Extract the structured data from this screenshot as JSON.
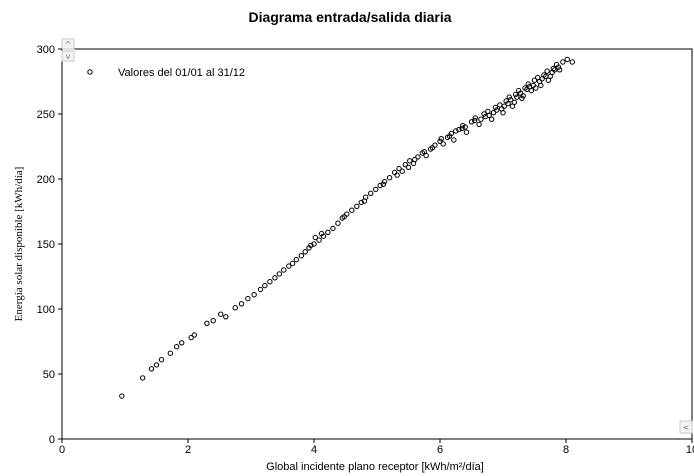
{
  "chart_data": {
    "type": "scatter",
    "title": "Diagrama entrada/salida diaria",
    "xlabel": "Global incidente plano receptor [kWh/m²/día]",
    "ylabel": "Energía solar disponible [kWh/día]",
    "xlim": [
      0,
      10
    ],
    "ylim": [
      0,
      300
    ],
    "xticks": [
      "0",
      "2",
      "4",
      "6",
      "8",
      "10"
    ],
    "yticks": [
      "0",
      "50",
      "100",
      "150",
      "200",
      "250",
      "300"
    ],
    "grid": false,
    "legend_position": "top-left",
    "series": [
      {
        "name": "Valores del 01/01 al 31/12",
        "marker": "open-circle",
        "color": "#000000",
        "points": [
          [
            0.95,
            33
          ],
          [
            1.28,
            47
          ],
          [
            1.42,
            54
          ],
          [
            1.5,
            57
          ],
          [
            1.58,
            61
          ],
          [
            1.72,
            66
          ],
          [
            1.82,
            71
          ],
          [
            1.9,
            74
          ],
          [
            2.05,
            78
          ],
          [
            2.1,
            80
          ],
          [
            2.3,
            89
          ],
          [
            2.4,
            91
          ],
          [
            2.52,
            96
          ],
          [
            2.6,
            94
          ],
          [
            2.75,
            101
          ],
          [
            2.85,
            104
          ],
          [
            2.95,
            108
          ],
          [
            3.05,
            111
          ],
          [
            3.15,
            115
          ],
          [
            3.22,
            118
          ],
          [
            3.3,
            121
          ],
          [
            3.38,
            124
          ],
          [
            3.45,
            127
          ],
          [
            3.52,
            130
          ],
          [
            3.6,
            133
          ],
          [
            3.66,
            135
          ],
          [
            3.72,
            138
          ],
          [
            3.8,
            141
          ],
          [
            3.86,
            144
          ],
          [
            3.92,
            147
          ],
          [
            4.0,
            150
          ],
          [
            4.02,
            155
          ],
          [
            4.08,
            153
          ],
          [
            4.15,
            156
          ],
          [
            4.22,
            159
          ],
          [
            4.3,
            162
          ],
          [
            4.38,
            166
          ],
          [
            4.45,
            170
          ],
          [
            4.52,
            173
          ],
          [
            4.6,
            176
          ],
          [
            4.68,
            179
          ],
          [
            4.75,
            182
          ],
          [
            4.82,
            186
          ],
          [
            4.9,
            189
          ],
          [
            4.98,
            192
          ],
          [
            5.05,
            195
          ],
          [
            5.12,
            198
          ],
          [
            5.2,
            201
          ],
          [
            5.28,
            205
          ],
          [
            5.35,
            208
          ],
          [
            5.4,
            206
          ],
          [
            5.45,
            211
          ],
          [
            5.52,
            214
          ],
          [
            5.58,
            212
          ],
          [
            5.65,
            217
          ],
          [
            5.72,
            220
          ],
          [
            5.78,
            218
          ],
          [
            5.85,
            223
          ],
          [
            5.92,
            226
          ],
          [
            6.0,
            229
          ],
          [
            6.05,
            227
          ],
          [
            6.12,
            232
          ],
          [
            6.18,
            235
          ],
          [
            6.22,
            230
          ],
          [
            6.3,
            238
          ],
          [
            6.36,
            241
          ],
          [
            6.42,
            236
          ],
          [
            6.5,
            244
          ],
          [
            6.56,
            247
          ],
          [
            6.62,
            242
          ],
          [
            6.7,
            250
          ],
          [
            6.76,
            252
          ],
          [
            6.82,
            246
          ],
          [
            6.88,
            255
          ],
          [
            6.95,
            257
          ],
          [
            7.0,
            251
          ],
          [
            7.05,
            260
          ],
          [
            7.1,
            263
          ],
          [
            7.15,
            256
          ],
          [
            7.2,
            265
          ],
          [
            7.25,
            268
          ],
          [
            7.3,
            262
          ],
          [
            7.35,
            270
          ],
          [
            7.4,
            273
          ],
          [
            7.45,
            268
          ],
          [
            7.5,
            276
          ],
          [
            7.55,
            278
          ],
          [
            7.6,
            272
          ],
          [
            7.65,
            280
          ],
          [
            7.7,
            283
          ],
          [
            7.75,
            279
          ],
          [
            7.8,
            285
          ],
          [
            7.85,
            288
          ],
          [
            7.9,
            284
          ],
          [
            7.95,
            290
          ],
          [
            8.02,
            292
          ],
          [
            8.1,
            290
          ],
          [
            3.95,
            149
          ],
          [
            4.12,
            158
          ],
          [
            4.48,
            171
          ],
          [
            4.8,
            183
          ],
          [
            5.1,
            196
          ],
          [
            5.32,
            203
          ],
          [
            5.6,
            215
          ],
          [
            5.88,
            224
          ],
          [
            6.15,
            233
          ],
          [
            6.4,
            240
          ],
          [
            6.65,
            246
          ],
          [
            6.9,
            253
          ],
          [
            7.08,
            258
          ],
          [
            7.28,
            266
          ],
          [
            7.48,
            272
          ],
          [
            7.68,
            279
          ],
          [
            7.88,
            286
          ],
          [
            6.25,
            237
          ],
          [
            6.55,
            245
          ],
          [
            6.85,
            251
          ],
          [
            7.12,
            261
          ],
          [
            7.38,
            269
          ],
          [
            7.58,
            275
          ],
          [
            7.78,
            282
          ],
          [
            5.5,
            209
          ],
          [
            5.75,
            221
          ],
          [
            6.02,
            231
          ],
          [
            6.35,
            239
          ],
          [
            6.72,
            248
          ],
          [
            7.02,
            256
          ],
          [
            7.22,
            263
          ],
          [
            7.42,
            271
          ],
          [
            7.62,
            277
          ],
          [
            7.82,
            284
          ],
          [
            7.18,
            259
          ],
          [
            7.32,
            264
          ],
          [
            7.52,
            270
          ],
          [
            7.72,
            276
          ],
          [
            6.98,
            254
          ],
          [
            6.78,
            249
          ]
        ]
      }
    ]
  },
  "window": {
    "scroll_up_glyph": "^",
    "scroll_down_glyph": "v",
    "scroll_left_glyph": "<"
  }
}
